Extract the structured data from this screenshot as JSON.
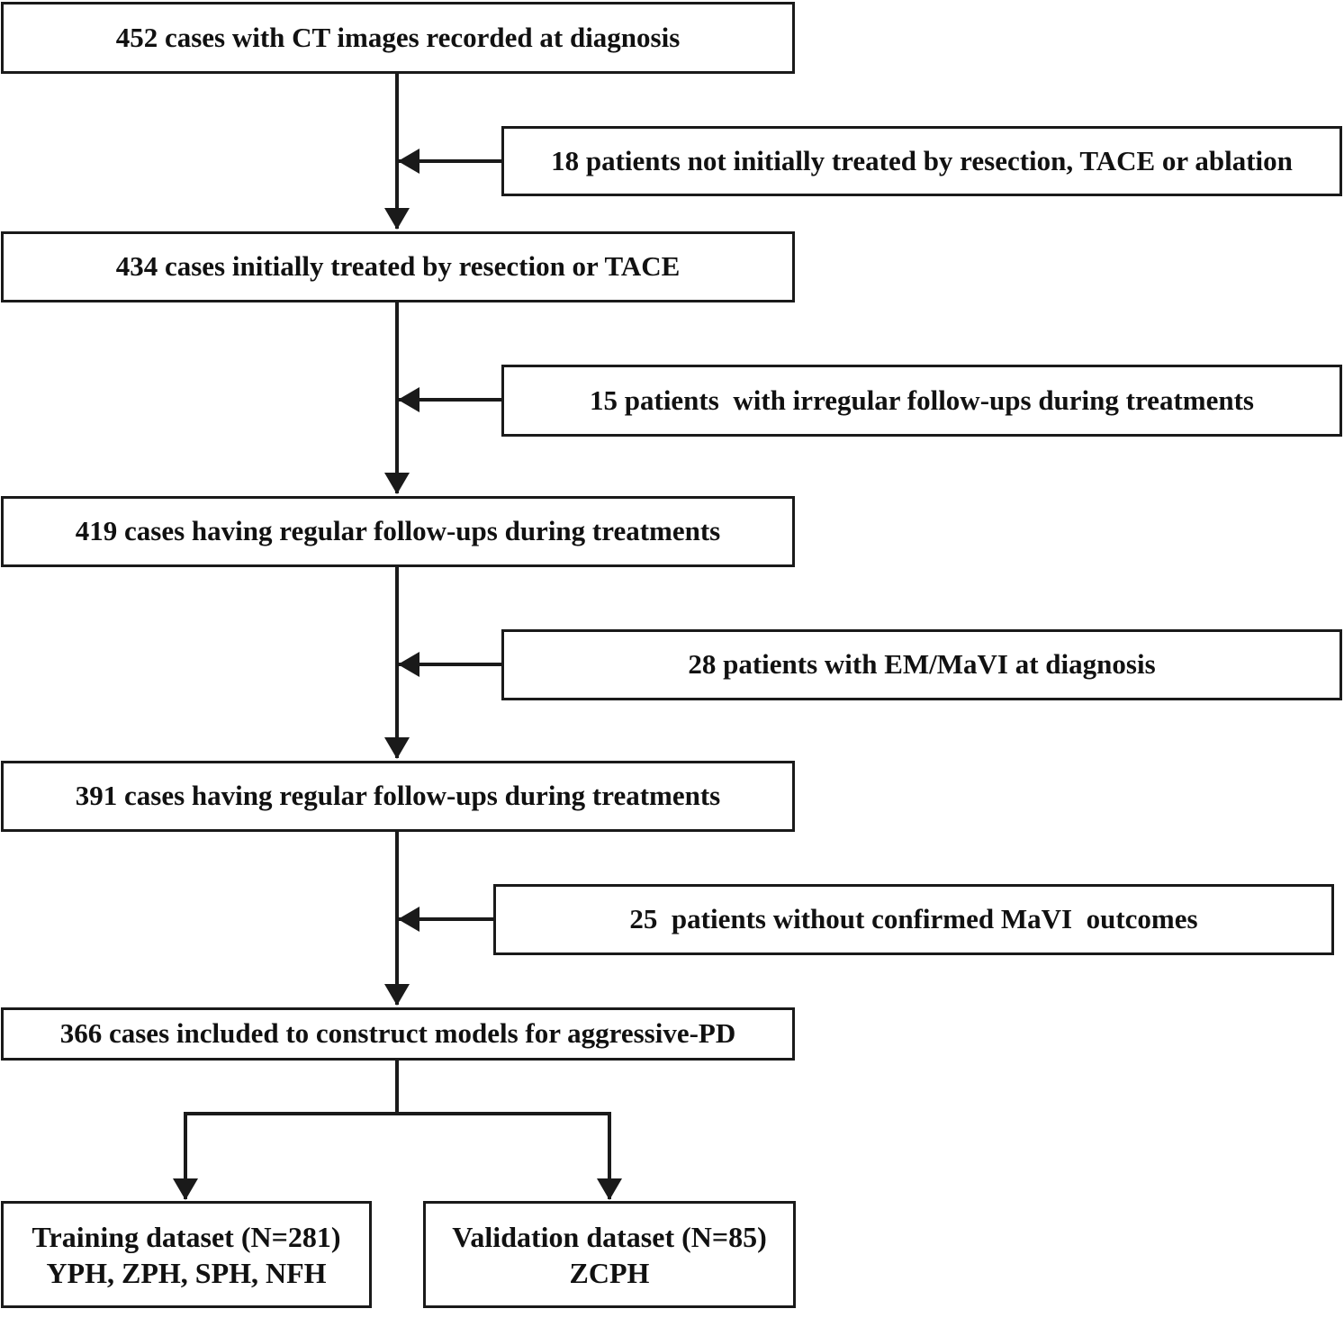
{
  "main_flow": [
    {
      "id": "step-1",
      "label": "452 cases with CT images recorded at diagnosis"
    },
    {
      "id": "step-2",
      "label": "434 cases initially treated by resection or TACE"
    },
    {
      "id": "step-3",
      "label": "419 cases having regular follow-ups during treatments"
    },
    {
      "id": "step-4",
      "label": "391 cases having regular follow-ups during treatments"
    },
    {
      "id": "step-5",
      "label": "366 cases included to construct models for aggressive-PD"
    }
  ],
  "exclusions": [
    {
      "id": "exclusion-1",
      "label": "18 patients not initially treated by resection, TACE or ablation"
    },
    {
      "id": "exclusion-2",
      "label": "15 patients  with irregular follow-ups during treatments"
    },
    {
      "id": "exclusion-3",
      "label": "28 patients with EM/MaVI at diagnosis"
    },
    {
      "id": "exclusion-4",
      "label": "25  patients without confirmed MaVI  outcomes"
    }
  ],
  "datasets": {
    "training": {
      "line1": "Training dataset (N=281)",
      "line2": "YPH, ZPH, SPH, NFH"
    },
    "validation": {
      "line1": "Validation dataset (N=85)",
      "line2": "ZCPH"
    }
  },
  "colors": {
    "line": "#1a1a1a",
    "box_border": "#1a1a1a",
    "background": "#ffffff"
  }
}
